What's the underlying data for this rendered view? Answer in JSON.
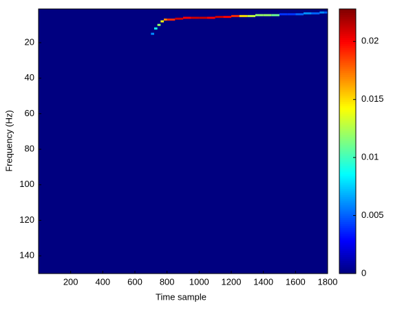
{
  "chart_data": {
    "type": "heatmap",
    "xlabel": "Time sample",
    "ylabel": "Frequency (Hz)",
    "xlim": [
      0,
      1800
    ],
    "xticks": [
      200,
      400,
      600,
      800,
      1000,
      1200,
      1400,
      1600,
      1800
    ],
    "ylim": [
      1,
      150
    ],
    "yticks": [
      20,
      40,
      60,
      80,
      100,
      120,
      140
    ],
    "y_reversed": true,
    "colormap": "jet",
    "clim": [
      0,
      0.0228
    ],
    "cticks": [
      0,
      0.005,
      0.01,
      0.015,
      0.02
    ],
    "x": [
      700,
      720,
      740,
      760,
      780,
      800,
      850,
      900,
      950,
      1000,
      1050,
      1100,
      1150,
      1200,
      1250,
      1300,
      1350,
      1400,
      1450,
      1500,
      1550,
      1600,
      1650,
      1700,
      1750,
      1780
    ],
    "y": [
      15,
      12,
      10,
      8,
      7,
      7,
      6.5,
      6,
      6,
      6,
      6,
      5.5,
      5.5,
      5,
      5,
      5,
      4.5,
      4.5,
      4.5,
      4,
      4,
      4,
      3.5,
      3.5,
      3,
      3
    ],
    "values": [
      0.006,
      0.009,
      0.012,
      0.014,
      0.017,
      0.019,
      0.021,
      0.02,
      0.021,
      0.021,
      0.02,
      0.021,
      0.02,
      0.019,
      0.015,
      0.013,
      0.012,
      0.012,
      0.011,
      0.004,
      0.004,
      0.005,
      0.006,
      0.005,
      0.006,
      0.005
    ]
  }
}
